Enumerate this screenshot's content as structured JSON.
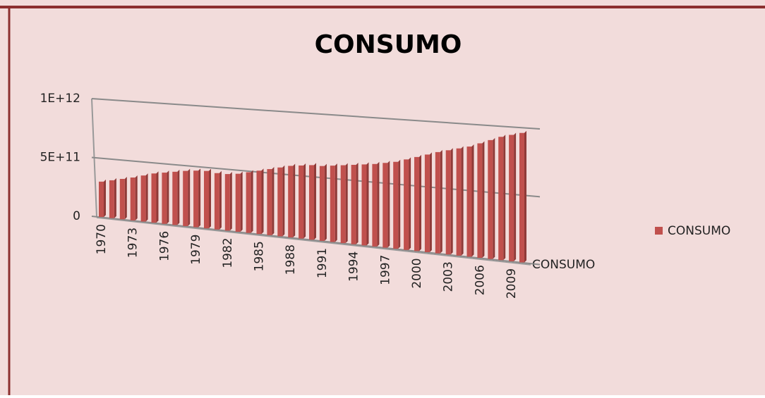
{
  "chart_data": {
    "type": "bar3d",
    "title": "CONSUMO",
    "categories": [
      "1970",
      null,
      null,
      "1973",
      null,
      null,
      "1976",
      null,
      null,
      "1979",
      null,
      null,
      "1982",
      null,
      null,
      "1985",
      null,
      null,
      "1988",
      null,
      null,
      "1991",
      null,
      null,
      "1994",
      null,
      null,
      "1997",
      null,
      null,
      "2000",
      null,
      null,
      "2003",
      null,
      null,
      "2006",
      null,
      null,
      "2009",
      null
    ],
    "series": [
      {
        "name": "CONSUMO",
        "color": "#c0504d",
        "values": [
          300000000000,
          320000000000,
          340000000000,
          360000000000,
          385000000000,
          410000000000,
          425000000000,
          440000000000,
          455000000000,
          465000000000,
          470000000000,
          460000000000,
          460000000000,
          470000000000,
          490000000000,
          510000000000,
          530000000000,
          550000000000,
          570000000000,
          580000000000,
          590000000000,
          590000000000,
          600000000000,
          610000000000,
          620000000000,
          630000000000,
          640000000000,
          655000000000,
          670000000000,
          695000000000,
          720000000000,
          745000000000,
          770000000000,
          790000000000,
          810000000000,
          830000000000,
          860000000000,
          890000000000,
          920000000000,
          940000000000,
          960000000000
        ]
      }
    ],
    "ylim": [
      0,
      1000000000000
    ],
    "yticks": [
      0,
      {
        "value": 500000000000,
        "label": "5E+11"
      },
      {
        "value": 1000000000000,
        "label": "1E+12"
      }
    ],
    "grid": true,
    "legend": "right"
  }
}
